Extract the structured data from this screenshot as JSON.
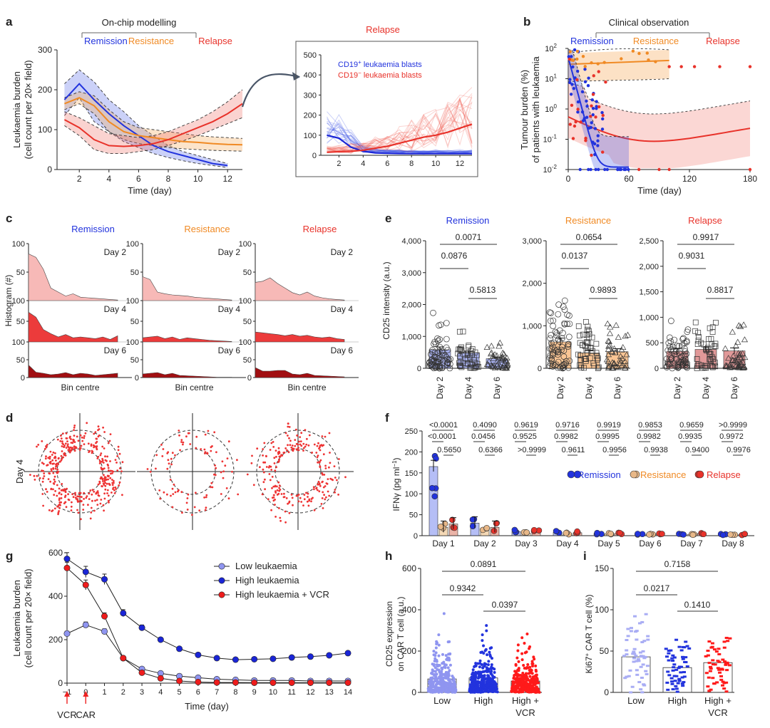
{
  "colors": {
    "remission": "#2233dd",
    "resistance": "#f08a24",
    "relapse": "#e8322a",
    "dark_red": "#9a0f0f",
    "low": "#8f95f0",
    "high": "#1a25d6",
    "vcr": "#ee1c1c"
  },
  "panels": {
    "a": {
      "letter": "a",
      "header": "On-chip modelling",
      "labels": {
        "remission": "Remission",
        "resistance": "Resistance",
        "relapse": "Relapse"
      },
      "ylabel": "Leukaemia burden",
      "ylabel2": "(cell count per 20× field)",
      "xlabel": "Time (day)",
      "inset_title": "Relapse",
      "inset_legend": [
        "CD19",
        "+",
        " leukaemia blasts",
        "CD19",
        "−",
        " leukaemia blasts"
      ]
    },
    "b": {
      "letter": "b",
      "header": "Clinical observation",
      "labels": {
        "remission": "Remission",
        "resistance": "Resistance",
        "relapse": "Relapse"
      },
      "ylabel": "Tumour burden (%)",
      "ylabel2": "of patients with leukaemia",
      "xlabel": "Time (day)"
    },
    "c": {
      "letter": "c",
      "titles": [
        "Remission",
        "Resistance",
        "Relapse"
      ],
      "days": [
        "Day 2",
        "Day 4",
        "Day 6"
      ],
      "ylabel": "Histogram (#)",
      "xlabel": "Bin centre"
    },
    "d": {
      "letter": "d",
      "ylabel": "Day 4"
    },
    "e": {
      "letter": "e",
      "titles": [
        "Remission",
        "Resistance",
        "Relapse"
      ],
      "ylabel": "CD25 intensity (a.u.)",
      "xcats": [
        "Day 2",
        "Day 4",
        "Day 6"
      ],
      "pvals": [
        [
          "0.0071",
          "0.0876",
          "0.5813"
        ],
        [
          "0.0654",
          "0.0137",
          "0.9893"
        ],
        [
          "0.9917",
          "0.9031",
          "0.8817"
        ]
      ]
    },
    "f": {
      "letter": "f",
      "ylabel": "IFNγ (pg ml",
      "ylabel_sup": "−1",
      "ylabel_end": ")",
      "pvals_top": [
        "<0.0001",
        "0.4090",
        "0.9619",
        "0.9716",
        "0.9919",
        "0.9853",
        "0.9659",
        ">0.9999"
      ],
      "pvals_mid": [
        "<0.0001",
        "0.0456",
        "0.9525",
        "0.9982",
        "0.9995",
        "0.9982",
        "0.9935",
        "0.9972"
      ],
      "pvals_low": [
        "0.5650",
        "0.6366",
        ">0.9999",
        "0.9611",
        "0.9956",
        "0.9938",
        "0.9400",
        "0.9976"
      ],
      "legend": [
        "Remission",
        "Resistance",
        "Relapse"
      ]
    },
    "g": {
      "letter": "g",
      "ylabel": "Leukaemia burden",
      "ylabel2": "(cell count per 20× field)",
      "xlabel": "Time (day)",
      "legend": [
        "Low leukaemia",
        "High leukaemia",
        "High leukaemia + VCR"
      ],
      "arrows": [
        "VCR",
        "CAR"
      ]
    },
    "h": {
      "letter": "h",
      "ylabel": "CD25 expression",
      "ylabel2": "on CAR T cell (a.u.)",
      "xcats": [
        "Low",
        "High",
        "High +"
      ],
      "xcat_extra": "VCR",
      "pvals": [
        "0.0891",
        "0.9342",
        "0.0397"
      ]
    },
    "i": {
      "letter": "i",
      "ylabel": "Ki67",
      "ylabel_sup": "+",
      "ylabel_end": " CAR T cell (%)",
      "xcats": [
        "Low",
        "High",
        "High +"
      ],
      "xcat_extra": "VCR",
      "pvals": [
        "0.7158",
        "0.0217",
        "0.1410"
      ]
    }
  },
  "chart_data": [
    {
      "panel": "a",
      "type": "line",
      "x": [
        1,
        2,
        3,
        4,
        5,
        6,
        7,
        8,
        9,
        10,
        11,
        12,
        13
      ],
      "series": [
        {
          "name": "Remission",
          "values": [
            175,
            215,
            175,
            140,
            110,
            85,
            60,
            45,
            35,
            25,
            15,
            10,
            null
          ],
          "lower": [
            135,
            180,
            120,
            95,
            70,
            55,
            40,
            30,
            22,
            15,
            10,
            5,
            null
          ],
          "upper": [
            215,
            250,
            220,
            175,
            145,
            110,
            85,
            60,
            45,
            35,
            25,
            15,
            null
          ]
        },
        {
          "name": "Resistance",
          "values": [
            165,
            180,
            160,
            120,
            95,
            85,
            80,
            75,
            70,
            68,
            65,
            63,
            62
          ],
          "lower": [
            150,
            165,
            140,
            95,
            75,
            65,
            60,
            55,
            52,
            50,
            48,
            47,
            46
          ],
          "upper": [
            180,
            195,
            185,
            150,
            120,
            105,
            100,
            95,
            90,
            85,
            82,
            80,
            78
          ]
        },
        {
          "name": "Relapse",
          "values": [
            125,
            105,
            75,
            60,
            58,
            60,
            65,
            75,
            90,
            105,
            120,
            140,
            165
          ],
          "lower": [
            110,
            85,
            50,
            40,
            40,
            45,
            50,
            60,
            72,
            85,
            100,
            115,
            130
          ],
          "upper": [
            145,
            130,
            110,
            90,
            85,
            80,
            85,
            95,
            110,
            125,
            145,
            170,
            200
          ]
        }
      ],
      "xlim": [
        0.5,
        13
      ],
      "ylim": [
        0,
        300
      ],
      "xticks": [
        2,
        4,
        6,
        8,
        10,
        12
      ],
      "yticks": [
        0,
        100,
        200,
        300
      ]
    },
    {
      "panel": "a-inset",
      "type": "line",
      "x": [
        1,
        2,
        3,
        4,
        5,
        6,
        7,
        8,
        9,
        10,
        11,
        12,
        13
      ],
      "series": [
        {
          "name": "CD19+ leukaemia blasts",
          "values": [
            100,
            85,
            40,
            20,
            12,
            10,
            9,
            8,
            8,
            8,
            8,
            8,
            8
          ]
        },
        {
          "name": "CD19− leukaemia blasts",
          "values": [
            15,
            18,
            20,
            25,
            35,
            45,
            60,
            75,
            90,
            100,
            115,
            135,
            155
          ]
        }
      ],
      "xlim": [
        0.5,
        13
      ],
      "ylim": [
        0,
        500
      ],
      "xticks": [
        2,
        4,
        6,
        8,
        10,
        12
      ],
      "yticks": [
        0,
        100,
        200,
        300,
        400,
        500
      ]
    },
    {
      "panel": "b",
      "type": "scatter",
      "yscale": "log",
      "xlim": [
        0,
        180
      ],
      "ylim": [
        0.01,
        100
      ],
      "xticks": [
        0,
        60,
        120,
        180
      ],
      "ytick_exps": [
        -2,
        -1,
        0,
        1,
        2
      ]
    },
    {
      "panel": "c",
      "type": "area",
      "rows": [
        "Day 2",
        "Day 4",
        "Day 6"
      ],
      "cols": [
        "Remission",
        "Resistance",
        "Relapse"
      ],
      "ylim": [
        0,
        100
      ],
      "yticks": [
        0,
        50,
        100
      ],
      "values": [
        [
          [
            82,
            76,
            55,
            22,
            15,
            8,
            12,
            6,
            5,
            4,
            3,
            2,
            1
          ],
          [
            42,
            37,
            15,
            12,
            10,
            9,
            8,
            6,
            5,
            4,
            3,
            2,
            1
          ],
          [
            32,
            34,
            40,
            30,
            22,
            14,
            10,
            15,
            8,
            5,
            3,
            2,
            1
          ]
        ],
        [
          [
            72,
            60,
            30,
            20,
            12,
            18,
            10,
            12,
            10,
            8,
            12,
            6,
            15
          ],
          [
            10,
            12,
            14,
            8,
            12,
            6,
            10,
            8,
            6,
            4,
            3,
            2,
            1
          ],
          [
            24,
            22,
            20,
            18,
            15,
            18,
            14,
            16,
            12,
            10,
            12,
            8,
            6
          ]
        ],
        [
          [
            35,
            15,
            12,
            8,
            10,
            14,
            8,
            12,
            10,
            6,
            8,
            10,
            12
          ],
          [
            10,
            12,
            14,
            8,
            12,
            6,
            5,
            4,
            3,
            2,
            1,
            1,
            1
          ],
          [
            28,
            18,
            18,
            20,
            20,
            10,
            8,
            12,
            6,
            5,
            4,
            3,
            2
          ]
        ]
      ]
    },
    {
      "panel": "e",
      "type": "bar",
      "facets": [
        {
          "name": "Remission",
          "categories": [
            "Day 2",
            "Day 4",
            "Day 6"
          ],
          "values": [
            580,
            480,
            300
          ],
          "errors": [
            90,
            60,
            50
          ],
          "ylim": [
            0,
            4000
          ],
          "yticks": [
            "0",
            "1,000",
            "2,000",
            "3,000",
            "4,000"
          ]
        },
        {
          "name": "Resistance",
          "categories": [
            "Day 2",
            "Day 4",
            "Day 6"
          ],
          "values": [
            620,
            360,
            390
          ],
          "errors": [
            90,
            60,
            70
          ],
          "ylim": [
            0,
            3000
          ],
          "yticks": [
            "0",
            "1,000",
            "2,000",
            "3,000"
          ]
        },
        {
          "name": "Relapse",
          "categories": [
            "Day 2",
            "Day 4",
            "Day 6"
          ],
          "values": [
            330,
            370,
            340
          ],
          "errors": [
            60,
            50,
            60
          ],
          "ylim": [
            0,
            2500
          ],
          "yticks": [
            "0",
            "500",
            "1,000",
            "1,500",
            "2,000",
            "2,500"
          ]
        }
      ]
    },
    {
      "panel": "f",
      "type": "bar",
      "categories": [
        "Day 1",
        "Day 2",
        "Day 3",
        "Day 4",
        "Day 5",
        "Day 6",
        "Day 7",
        "Day 8"
      ],
      "series": [
        {
          "name": "Remission",
          "values": [
            165,
            30,
            10,
            8,
            5,
            4,
            3,
            3
          ]
        },
        {
          "name": "Resistance",
          "values": [
            20,
            15,
            6,
            5,
            4,
            3,
            3,
            2
          ]
        },
        {
          "name": "Relapse",
          "values": [
            28,
            20,
            9,
            7,
            5,
            4,
            5,
            3
          ]
        }
      ],
      "ylim": [
        0,
        250
      ],
      "yticks": [
        0,
        50,
        100,
        150,
        200,
        250
      ]
    },
    {
      "panel": "g",
      "type": "line",
      "x": [
        -1,
        0,
        1,
        2,
        3,
        4,
        5,
        6,
        7,
        8,
        9,
        10,
        11,
        12,
        13,
        14
      ],
      "series": [
        {
          "name": "Low leukaemia",
          "values": [
            228,
            268,
            238,
            115,
            65,
            45,
            32,
            25,
            18,
            15,
            12,
            12,
            12,
            10,
            10,
            10
          ]
        },
        {
          "name": "High leukaemia",
          "values": [
            572,
            512,
            478,
            322,
            255,
            200,
            158,
            130,
            115,
            108,
            110,
            112,
            118,
            122,
            128,
            138
          ]
        },
        {
          "name": "High leukaemia + VCR",
          "values": [
            530,
            452,
            308,
            115,
            48,
            22,
            10,
            5,
            3,
            3,
            2,
            2,
            2,
            2,
            2,
            2
          ]
        }
      ],
      "xlim": [
        -1,
        14
      ],
      "ylim": [
        0,
        600
      ],
      "yticks": [
        0,
        200,
        400,
        600
      ]
    },
    {
      "panel": "h",
      "type": "bar",
      "categories": [
        "Low",
        "High",
        "High + VCR"
      ],
      "values": [
        65,
        70,
        55
      ],
      "ylim": [
        0,
        600
      ],
      "yticks": [
        0,
        200,
        400,
        600
      ]
    },
    {
      "panel": "i",
      "type": "bar",
      "categories": [
        "Low",
        "High",
        "High + VCR"
      ],
      "values": [
        43,
        30,
        36
      ],
      "ylim": [
        0,
        150
      ],
      "yticks": [
        0,
        50,
        100,
        150
      ]
    }
  ]
}
